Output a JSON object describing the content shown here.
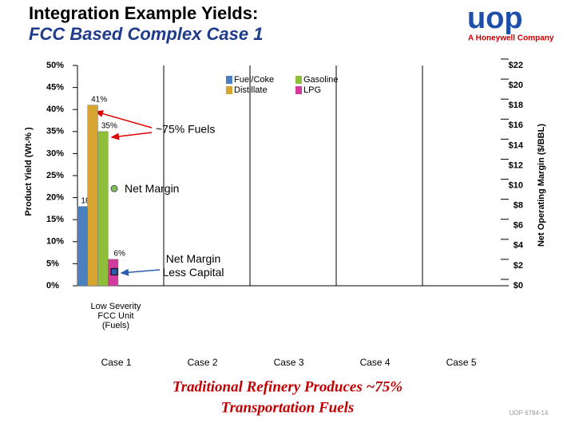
{
  "slide": {
    "title": "Integration Example Yields:",
    "subtitle": "FCC Based Complex Case 1",
    "logo": "uop",
    "logo_tagline": "A Honeywell Company",
    "footer": [
      "Traditional Refinery Produces ~75%",
      "Transportation Fuels"
    ],
    "slide_number": "UOP 6794-14"
  },
  "chart_data": {
    "type": "bar",
    "categories": [
      "Case 1",
      "Case 2",
      "Case 3",
      "Case 4",
      "Case 5"
    ],
    "category_note": [
      "Low Severity",
      "FCC Unit",
      "(Fuels)"
    ],
    "y_label": "Product Yield (Wt-% )",
    "y2_label": "Net Operating Margin ($/BBL)",
    "ylim": [
      0,
      50
    ],
    "yticks": [
      {
        "value": 0,
        "label": "0%"
      },
      {
        "value": 5,
        "label": "5%"
      },
      {
        "value": 10,
        "label": "10%"
      },
      {
        "value": 15,
        "label": "15%"
      },
      {
        "value": 20,
        "label": "20%"
      },
      {
        "value": 25,
        "label": "25%"
      },
      {
        "value": 30,
        "label": "30%"
      },
      {
        "value": 35,
        "label": "35%"
      },
      {
        "value": 40,
        "label": "40%"
      },
      {
        "value": 45,
        "label": "45%"
      },
      {
        "value": 50,
        "label": "50%"
      }
    ],
    "y2lim": [
      0,
      22
    ],
    "y2ticks": [
      {
        "value": 0,
        "label": "$0"
      },
      {
        "value": 2,
        "label": "$2"
      },
      {
        "value": 4,
        "label": "$4"
      },
      {
        "value": 6,
        "label": "$6"
      },
      {
        "value": 8,
        "label": "$8"
      },
      {
        "value": 10,
        "label": "$10"
      },
      {
        "value": 12,
        "label": "$12"
      },
      {
        "value": 14,
        "label": "$14"
      },
      {
        "value": 16,
        "label": "$16"
      },
      {
        "value": 18,
        "label": "$18"
      },
      {
        "value": 20,
        "label": "$20"
      },
      {
        "value": 22,
        "label": "$22"
      }
    ],
    "series": [
      {
        "name": "Fuel/Coke",
        "color": "#4a7fc0",
        "values": [
          18,
          null,
          null,
          null,
          null
        ],
        "value_labels": [
          "18%",
          null,
          null,
          null,
          null
        ]
      },
      {
        "name": "Distillate",
        "color": "#d9a531",
        "values": [
          41,
          null,
          null,
          null,
          null
        ],
        "value_labels": [
          "41%",
          null,
          null,
          null,
          null
        ]
      },
      {
        "name": "Gasoline",
        "color": "#8fbf3a",
        "values": [
          35,
          null,
          null,
          null,
          null
        ],
        "value_labels": [
          "35%",
          null,
          null,
          null,
          null
        ]
      },
      {
        "name": "LPG",
        "color": "#d33a9f",
        "values": [
          6,
          null,
          null,
          null,
          null
        ],
        "value_labels": [
          "6%",
          null,
          null,
          null,
          null
        ]
      },
      {
        "name": "Net Margin",
        "color": "#7fbf5a",
        "axis": "y2",
        "marker": "circle",
        "values": [
          9.7,
          null,
          null,
          null,
          null
        ]
      },
      {
        "name": "Net Margin Less Capital",
        "color": "#2a5caa",
        "axis": "y2",
        "marker": "square",
        "values": [
          1.4,
          null,
          null,
          null,
          null
        ]
      }
    ],
    "annotations": [
      "~75% Fuels"
    ]
  }
}
